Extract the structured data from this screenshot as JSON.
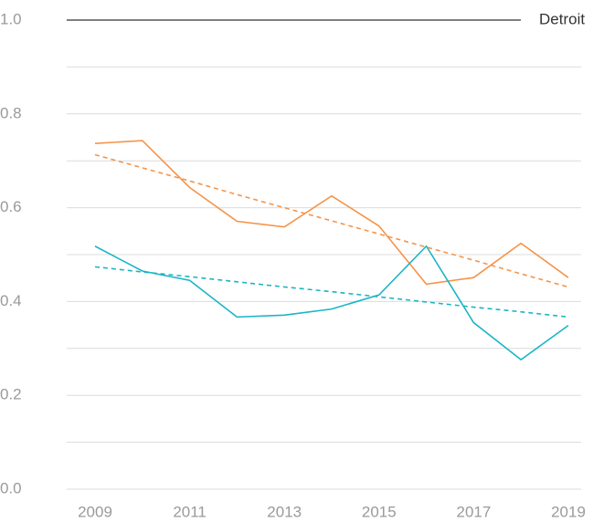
{
  "chart_data": {
    "type": "line",
    "x": [
      2009,
      2010,
      2011,
      2012,
      2013,
      2014,
      2015,
      2016,
      2017,
      2018,
      2019
    ],
    "series": [
      {
        "color": "#f5944a",
        "values": [
          0.737,
          0.743,
          0.643,
          0.571,
          0.559,
          0.625,
          0.561,
          0.437,
          0.451,
          0.524,
          0.451
        ]
      },
      {
        "color": "#1bb5c6",
        "values": [
          0.518,
          0.465,
          0.445,
          0.367,
          0.371,
          0.384,
          0.414,
          0.518,
          0.355,
          0.276,
          0.349
        ]
      },
      {
        "color": "#f5944a",
        "dashed": true,
        "values": [
          0.713,
          0.685,
          0.657,
          0.628,
          0.6,
          0.572,
          0.544,
          0.516,
          0.488,
          0.459,
          0.431
        ]
      },
      {
        "color": "#1bb5c6",
        "dashed": true,
        "values": [
          0.474,
          0.463,
          0.453,
          0.442,
          0.431,
          0.421,
          0.41,
          0.399,
          0.388,
          0.378,
          0.367
        ]
      }
    ],
    "reference_line": {
      "value": 1.0,
      "label": "Detroit",
      "color": "#333333"
    },
    "xlim": [
      2009,
      2019
    ],
    "xticks": [
      2009,
      2011,
      2013,
      2015,
      2017,
      2019
    ],
    "ylim": [
      0,
      1
    ],
    "yticks": [
      {
        "value": 0,
        "label": "0.0"
      },
      {
        "value": 0.2,
        "label": "0.2"
      },
      {
        "value": 0.4,
        "label": "0.4"
      },
      {
        "value": 0.6,
        "label": "0.6"
      },
      {
        "value": 0.8,
        "label": "0.8"
      },
      {
        "value": 1,
        "label": "1.0"
      }
    ],
    "minor_yticks": [
      0.1,
      0.3,
      0.5,
      0.7,
      0.9
    ],
    "grid": true
  }
}
